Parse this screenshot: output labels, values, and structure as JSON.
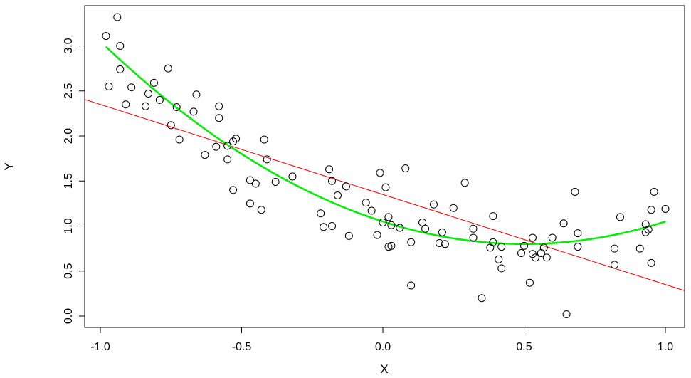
{
  "chart_data": {
    "type": "scatter",
    "xlabel": "X",
    "ylabel": "Y",
    "xlim": [
      -1.05,
      1.07
    ],
    "ylim": [
      -0.12,
      3.45
    ],
    "x_ticks": [
      -1.0,
      -0.5,
      0.0,
      0.5,
      1.0
    ],
    "x_tick_labels": [
      "-1.0",
      "-0.5",
      "0.0",
      "0.5",
      "1.0"
    ],
    "y_ticks": [
      0.0,
      0.5,
      1.0,
      1.5,
      2.0,
      2.5,
      3.0
    ],
    "y_tick_labels": [
      "0.0",
      "0.5",
      "1.0",
      "1.5",
      "2.0",
      "2.5",
      "3.0"
    ],
    "grid": false,
    "legend": "none",
    "points": [
      [
        -0.98,
        3.11
      ],
      [
        -0.94,
        3.32
      ],
      [
        -0.93,
        3.0
      ],
      [
        -0.93,
        2.74
      ],
      [
        -0.97,
        2.55
      ],
      [
        -0.91,
        2.35
      ],
      [
        -0.89,
        2.54
      ],
      [
        -0.84,
        2.33
      ],
      [
        -0.83,
        2.47
      ],
      [
        -0.81,
        2.59
      ],
      [
        -0.79,
        2.4
      ],
      [
        -0.76,
        2.75
      ],
      [
        -0.75,
        2.12
      ],
      [
        -0.73,
        2.32
      ],
      [
        -0.72,
        1.96
      ],
      [
        -0.66,
        2.46
      ],
      [
        -0.67,
        2.27
      ],
      [
        -0.63,
        1.79
      ],
      [
        -0.59,
        1.88
      ],
      [
        -0.58,
        2.33
      ],
      [
        -0.58,
        2.2
      ],
      [
        -0.55,
        1.89
      ],
      [
        -0.55,
        1.74
      ],
      [
        -0.53,
        1.94
      ],
      [
        -0.52,
        1.97
      ],
      [
        -0.53,
        1.4
      ],
      [
        -0.47,
        1.51
      ],
      [
        -0.45,
        1.47
      ],
      [
        -0.47,
        1.25
      ],
      [
        -0.43,
        1.18
      ],
      [
        -0.42,
        1.96
      ],
      [
        -0.41,
        1.74
      ],
      [
        -0.38,
        1.49
      ],
      [
        -0.32,
        1.55
      ],
      [
        -0.22,
        1.14
      ],
      [
        -0.21,
        0.99
      ],
      [
        -0.19,
        1.63
      ],
      [
        -0.18,
        1.5
      ],
      [
        -0.18,
        1.0
      ],
      [
        -0.16,
        1.34
      ],
      [
        -0.13,
        1.44
      ],
      [
        -0.12,
        0.89
      ],
      [
        -0.06,
        1.26
      ],
      [
        -0.04,
        1.17
      ],
      [
        -0.02,
        0.9
      ],
      [
        -0.01,
        1.59
      ],
      [
        0.0,
        1.04
      ],
      [
        0.01,
        1.43
      ],
      [
        0.02,
        1.1
      ],
      [
        0.02,
        0.77
      ],
      [
        0.03,
        1.01
      ],
      [
        0.03,
        0.78
      ],
      [
        0.06,
        0.98
      ],
      [
        0.08,
        1.64
      ],
      [
        0.1,
        0.34
      ],
      [
        0.1,
        0.82
      ],
      [
        0.14,
        1.04
      ],
      [
        0.15,
        0.97
      ],
      [
        0.18,
        1.24
      ],
      [
        0.2,
        0.81
      ],
      [
        0.21,
        0.93
      ],
      [
        0.22,
        0.8
      ],
      [
        0.25,
        1.2
      ],
      [
        0.29,
        1.48
      ],
      [
        0.32,
        0.97
      ],
      [
        0.32,
        0.87
      ],
      [
        0.35,
        0.2
      ],
      [
        0.39,
        1.11
      ],
      [
        0.39,
        0.82
      ],
      [
        0.38,
        0.76
      ],
      [
        0.41,
        0.63
      ],
      [
        0.42,
        0.77
      ],
      [
        0.42,
        0.53
      ],
      [
        0.49,
        0.7
      ],
      [
        0.5,
        0.78
      ],
      [
        0.52,
        0.37
      ],
      [
        0.53,
        0.87
      ],
      [
        0.53,
        0.69
      ],
      [
        0.54,
        0.65
      ],
      [
        0.56,
        0.7
      ],
      [
        0.57,
        0.76
      ],
      [
        0.58,
        0.65
      ],
      [
        0.6,
        0.87
      ],
      [
        0.64,
        1.03
      ],
      [
        0.65,
        0.02
      ],
      [
        0.68,
        1.38
      ],
      [
        0.69,
        0.92
      ],
      [
        0.69,
        0.77
      ],
      [
        0.82,
        0.75
      ],
      [
        0.82,
        0.57
      ],
      [
        0.84,
        1.1
      ],
      [
        0.91,
        0.75
      ],
      [
        0.93,
        0.93
      ],
      [
        0.93,
        1.02
      ],
      [
        0.94,
        0.96
      ],
      [
        0.95,
        1.18
      ],
      [
        0.95,
        0.59
      ],
      [
        0.96,
        1.38
      ],
      [
        1.0,
        1.19
      ]
    ],
    "linear_fit": {
      "color": "#ff0000",
      "intercept": 1.35,
      "slope": -1.0
    },
    "quadratic_fit": {
      "color": "#00ee00",
      "x_range": [
        -0.98,
        1.0
      ],
      "a": 1.05,
      "b": -1.0,
      "c": 1.0
    }
  }
}
